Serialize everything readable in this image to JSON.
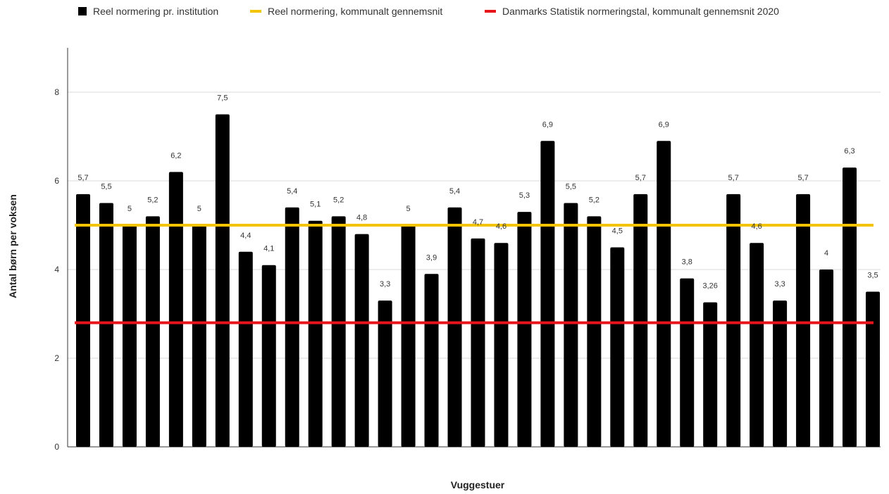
{
  "chart_data": {
    "type": "bar",
    "xlabel": "Vuggestuer",
    "ylabel": "Antal børn per voksen",
    "ylim": [
      0,
      9
    ],
    "yticks": [
      0,
      2,
      4,
      6,
      8
    ],
    "grid": true,
    "legend_position": "top",
    "series": [
      {
        "name": "Reel normering pr. institution",
        "kind": "bar",
        "color": "#000000",
        "values": [
          5.7,
          5.5,
          5,
          5.2,
          6.2,
          5,
          7.5,
          4.4,
          4.1,
          5.4,
          5.1,
          5.2,
          4.8,
          3.3,
          5,
          3.9,
          5.4,
          4.7,
          4.6,
          5.3,
          6.9,
          5.5,
          5.2,
          4.5,
          5.7,
          6.9,
          3.8,
          3.26,
          5.7,
          4.6,
          3.3,
          5.7,
          4,
          6.3,
          3.5
        ],
        "labels": [
          "5,7",
          "5,5",
          "5",
          "5,2",
          "6,2",
          "5",
          "7,5",
          "4,4",
          "4,1",
          "5,4",
          "5,1",
          "5,2",
          "4,8",
          "3,3",
          "5",
          "3,9",
          "5,4",
          "4,7",
          "4,6",
          "5,3",
          "6,9",
          "5,5",
          "5,2",
          "4,5",
          "5,7",
          "6,9",
          "3,8",
          "3,26",
          "5,7",
          "4,6",
          "3,3",
          "5,7",
          "4",
          "6,3",
          "3,5"
        ]
      },
      {
        "name": "Reel normering, kommunalt gennemsnit",
        "kind": "line",
        "color": "#f2c500",
        "value": 5
      },
      {
        "name": "Danmarks Statistik normeringstal, kommunalt gennemsnit 2020",
        "kind": "line",
        "color": "#e8141c",
        "value": 2.8
      }
    ]
  }
}
